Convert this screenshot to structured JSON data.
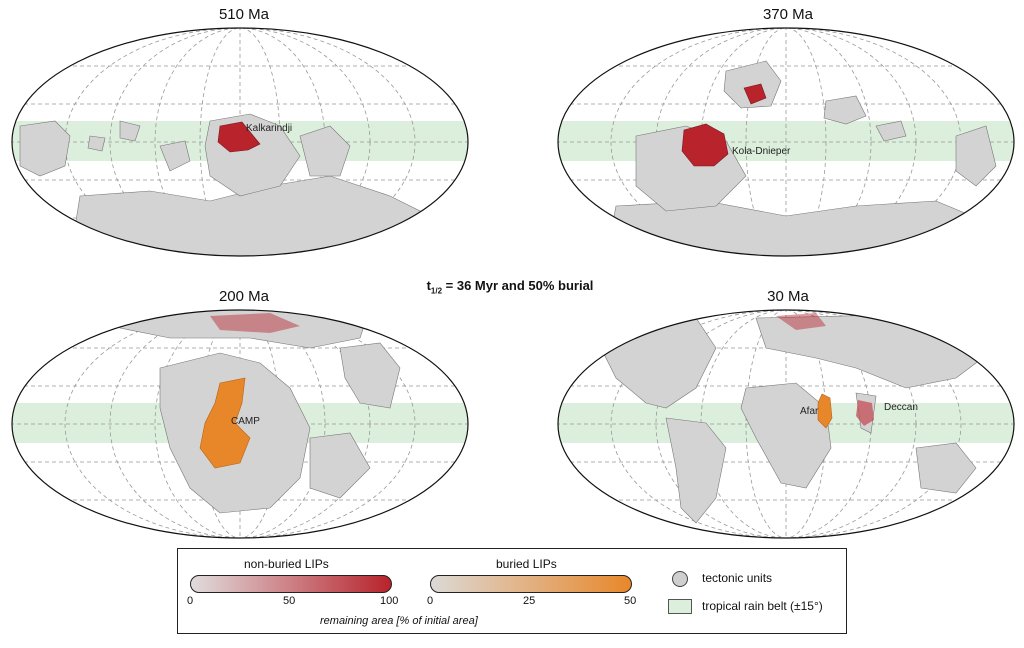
{
  "figure_title": {
    "t": "t",
    "sub": "1/2",
    "rest": " = 36 Myr and 50% burial"
  },
  "panels": [
    {
      "title": "510 Ma",
      "lip_label": "Kalkarindji"
    },
    {
      "title": "370 Ma",
      "lip_label": "Kola-Dnieper"
    },
    {
      "title": "200 Ma",
      "lip_label": "CAMP"
    },
    {
      "title": "30 Ma",
      "lip_labels": [
        "Afar",
        "Deccan"
      ]
    }
  ],
  "legend": {
    "non_buried_title": "non-buried LIPs",
    "non_buried_ticks": [
      "0",
      "50",
      "100"
    ],
    "buried_title": "buried LIPs",
    "buried_ticks": [
      "0",
      "25",
      "50"
    ],
    "axis_note": "remaining area [% of initial area]",
    "tectonic_label": "tectonic units",
    "rain_belt_label": "tropical rain belt (±15°)"
  },
  "colors": {
    "land": "#d3d3d3",
    "non_buried_lip": "#b8232c",
    "buried_lip": "#e8872a",
    "rain_belt": "#dcefdc"
  }
}
